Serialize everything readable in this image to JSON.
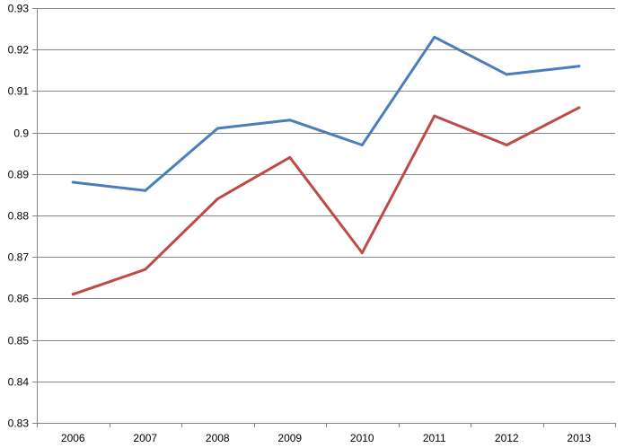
{
  "chart_data": {
    "type": "line",
    "title": "",
    "xlabel": "",
    "ylabel": "",
    "categories": [
      "2006",
      "2007",
      "2008",
      "2009",
      "2010",
      "2011",
      "2012",
      "2013"
    ],
    "ylim": [
      0.83,
      0.93
    ],
    "yticks": [
      "0.83",
      "0.84",
      "0.85",
      "0.86",
      "0.87",
      "0.88",
      "0.89",
      "0.9",
      "0.91",
      "0.92",
      "0.93"
    ],
    "grid": true,
    "legend": "none",
    "series": [
      {
        "color": "#4a7ebb",
        "values": [
          0.888,
          0.886,
          0.901,
          0.903,
          0.897,
          0.923,
          0.914,
          0.916
        ]
      },
      {
        "color": "#be4b48",
        "values": [
          0.861,
          0.867,
          0.884,
          0.894,
          0.871,
          0.904,
          0.897,
          0.906
        ]
      }
    ]
  }
}
